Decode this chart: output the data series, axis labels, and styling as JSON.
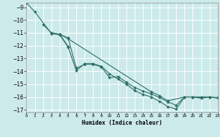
{
  "xlabel": "Humidex (Indice chaleur)",
  "bg_color": "#cceaea",
  "grid_color": "#ffffff",
  "line_color": "#2d7068",
  "markersize": 2.2,
  "linewidth": 0.85,
  "xlim": [
    0,
    23
  ],
  "ylim": [
    -17.2,
    -8.65
  ],
  "yticks": [
    -9,
    -10,
    -11,
    -12,
    -13,
    -14,
    -15,
    -16,
    -17
  ],
  "xticks": [
    0,
    1,
    2,
    3,
    4,
    5,
    6,
    7,
    8,
    9,
    10,
    11,
    12,
    13,
    14,
    15,
    16,
    17,
    18,
    19,
    20,
    21,
    22,
    23
  ],
  "series": [
    {
      "x": [
        0,
        1,
        3,
        4,
        5
      ],
      "y": [
        -8.65,
        -9.35,
        -11.05,
        -11.1,
        -12.05
      ]
    },
    {
      "x": [
        2,
        3,
        4,
        5,
        15,
        16,
        17,
        19,
        20,
        21,
        22
      ],
      "y": [
        -10.35,
        -11.0,
        -11.1,
        -11.45,
        -15.6,
        -15.9,
        -16.3,
        -16.0,
        -16.0,
        -16.0,
        -16.0
      ]
    },
    {
      "x": [
        3,
        4,
        5,
        6,
        7,
        8,
        9,
        10,
        11,
        12,
        13,
        14,
        15,
        16,
        17,
        18,
        19,
        20,
        21,
        22,
        23
      ],
      "y": [
        -11.05,
        -11.1,
        -11.4,
        -13.75,
        -13.45,
        -13.45,
        -13.65,
        -14.5,
        -14.4,
        -14.85,
        -15.25,
        -15.55,
        -15.75,
        -16.05,
        -16.38,
        -16.65,
        -16.0,
        -16.0,
        -16.05,
        -16.0,
        -16.05
      ]
    },
    {
      "x": [
        3,
        4,
        5,
        6,
        7,
        8,
        9,
        10,
        11,
        12,
        13,
        14,
        15,
        16,
        17,
        18,
        19,
        20,
        21,
        22,
        23
      ],
      "y": [
        -11.05,
        -11.15,
        -12.1,
        -13.95,
        -13.4,
        -13.4,
        -13.6,
        -14.2,
        -14.6,
        -15.0,
        -15.5,
        -15.8,
        -16.0,
        -16.35,
        -16.75,
        -16.95,
        -16.0,
        -16.0,
        -16.1,
        -16.0,
        -16.1
      ]
    }
  ]
}
